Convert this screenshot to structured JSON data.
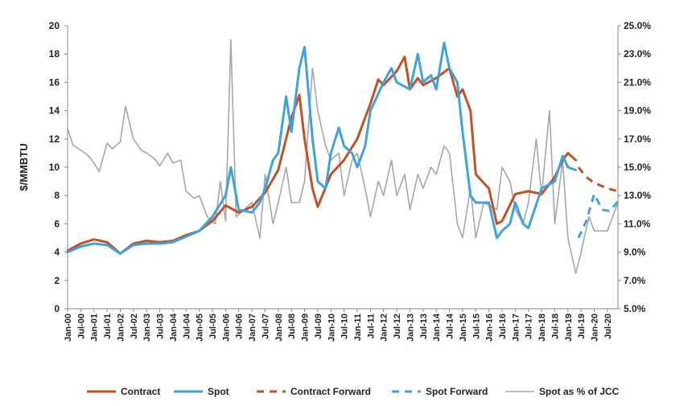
{
  "chart_data": {
    "type": "line",
    "title": "",
    "ylabel": "$/MMBTU",
    "y2label": "",
    "ylim": [
      0,
      20
    ],
    "y2lim": [
      5,
      25
    ],
    "yticks": [
      "0",
      "2",
      "4",
      "6",
      "8",
      "10",
      "12",
      "14",
      "16",
      "18",
      "20"
    ],
    "y2ticks": [
      "5.0%",
      "7.0%",
      "9.0%",
      "11.0%",
      "13.0%",
      "15.0%",
      "17.0%",
      "19.0%",
      "21.0%",
      "23.0%",
      "25.0%"
    ],
    "x_categories": [
      "Jan-00",
      "Jul-00",
      "Jan-01",
      "Jul-01",
      "Jan-02",
      "Jul-02",
      "Jan-03",
      "Jul-03",
      "Jan-04",
      "Jul-04",
      "Jan-05",
      "Jul-05",
      "Jan-06",
      "Jul-06",
      "Jan-07",
      "Jul-07",
      "Jan-08",
      "Jul-08",
      "Jan-09",
      "Jul-09",
      "Jan-10",
      "Jul-10",
      "Jan-11",
      "Jul-11",
      "Jan-12",
      "Jul-12",
      "Jan-13",
      "Jul-13",
      "Jan-14",
      "Jul-14",
      "Jan-15",
      "Jul-15",
      "Jan-16",
      "Jul-16",
      "Jan-17",
      "Jul-17",
      "Jan-18",
      "Jul-18",
      "Jan-19",
      "Jul-19",
      "Jan-20",
      "Jul-20"
    ],
    "x_range": [
      2000.0,
      2020.9
    ],
    "legend_position": "bottom",
    "grid": false,
    "series": [
      {
        "name": "Contract",
        "axis": "left",
        "color": "#c0522a",
        "dash": "solid",
        "points": [
          [
            2000.0,
            4.1
          ],
          [
            2000.5,
            4.6
          ],
          [
            2001.0,
            4.9
          ],
          [
            2001.5,
            4.7
          ],
          [
            2002.0,
            3.9
          ],
          [
            2002.5,
            4.6
          ],
          [
            2003.0,
            4.8
          ],
          [
            2003.5,
            4.7
          ],
          [
            2004.0,
            4.8
          ],
          [
            2004.5,
            5.2
          ],
          [
            2005.0,
            5.5
          ],
          [
            2005.5,
            6.2
          ],
          [
            2006.0,
            7.3
          ],
          [
            2006.5,
            6.8
          ],
          [
            2007.0,
            7.2
          ],
          [
            2007.5,
            8.2
          ],
          [
            2008.0,
            9.8
          ],
          [
            2008.5,
            13.5
          ],
          [
            2008.8,
            15.1
          ],
          [
            2009.0,
            12.0
          ],
          [
            2009.3,
            8.5
          ],
          [
            2009.5,
            7.2
          ],
          [
            2010.0,
            9.5
          ],
          [
            2010.5,
            10.5
          ],
          [
            2011.0,
            12.0
          ],
          [
            2011.5,
            14.5
          ],
          [
            2011.8,
            16.2
          ],
          [
            2012.0,
            15.8
          ],
          [
            2012.5,
            16.8
          ],
          [
            2012.8,
            17.8
          ],
          [
            2013.0,
            15.5
          ],
          [
            2013.3,
            16.3
          ],
          [
            2013.5,
            15.8
          ],
          [
            2014.0,
            16.3
          ],
          [
            2014.5,
            17.0
          ],
          [
            2014.8,
            15.0
          ],
          [
            2015.0,
            15.5
          ],
          [
            2015.3,
            14.0
          ],
          [
            2015.5,
            9.5
          ],
          [
            2016.0,
            8.5
          ],
          [
            2016.3,
            6.0
          ],
          [
            2016.5,
            6.2
          ],
          [
            2017.0,
            8.1
          ],
          [
            2017.5,
            8.3
          ],
          [
            2018.0,
            8.1
          ],
          [
            2018.5,
            9.3
          ],
          [
            2018.8,
            10.5
          ],
          [
            2019.0,
            11.0
          ],
          [
            2019.3,
            10.5
          ]
        ]
      },
      {
        "name": "Spot",
        "axis": "left",
        "color": "#3fa3d9",
        "dash": "solid",
        "points": [
          [
            2000.0,
            4.0
          ],
          [
            2000.5,
            4.4
          ],
          [
            2001.0,
            4.6
          ],
          [
            2001.5,
            4.5
          ],
          [
            2002.0,
            3.9
          ],
          [
            2002.5,
            4.5
          ],
          [
            2003.0,
            4.6
          ],
          [
            2003.5,
            4.6
          ],
          [
            2004.0,
            4.7
          ],
          [
            2004.5,
            5.1
          ],
          [
            2005.0,
            5.5
          ],
          [
            2005.5,
            6.5
          ],
          [
            2006.0,
            8.0
          ],
          [
            2006.2,
            10.0
          ],
          [
            2006.5,
            7.0
          ],
          [
            2007.0,
            6.8
          ],
          [
            2007.3,
            7.5
          ],
          [
            2007.5,
            8.5
          ],
          [
            2007.8,
            10.5
          ],
          [
            2008.0,
            11.0
          ],
          [
            2008.3,
            15.0
          ],
          [
            2008.5,
            12.5
          ],
          [
            2008.8,
            17.0
          ],
          [
            2009.0,
            18.5
          ],
          [
            2009.3,
            12.0
          ],
          [
            2009.5,
            9.0
          ],
          [
            2009.8,
            8.5
          ],
          [
            2010.0,
            11.0
          ],
          [
            2010.3,
            12.8
          ],
          [
            2010.5,
            11.5
          ],
          [
            2010.8,
            11.0
          ],
          [
            2011.0,
            10.0
          ],
          [
            2011.3,
            11.5
          ],
          [
            2011.5,
            14.0
          ],
          [
            2012.0,
            16.0
          ],
          [
            2012.3,
            17.0
          ],
          [
            2012.5,
            16.0
          ],
          [
            2013.0,
            15.5
          ],
          [
            2013.3,
            18.0
          ],
          [
            2013.5,
            16.0
          ],
          [
            2013.8,
            16.5
          ],
          [
            2014.0,
            15.5
          ],
          [
            2014.3,
            18.8
          ],
          [
            2014.5,
            17.0
          ],
          [
            2014.8,
            16.0
          ],
          [
            2015.0,
            12.5
          ],
          [
            2015.3,
            8.0
          ],
          [
            2015.5,
            7.5
          ],
          [
            2016.0,
            7.5
          ],
          [
            2016.3,
            5.0
          ],
          [
            2016.5,
            5.5
          ],
          [
            2016.8,
            6.0
          ],
          [
            2017.0,
            7.5
          ],
          [
            2017.3,
            6.0
          ],
          [
            2017.5,
            5.7
          ],
          [
            2018.0,
            8.5
          ],
          [
            2018.5,
            9.0
          ],
          [
            2018.8,
            10.8
          ],
          [
            2019.0,
            10.0
          ],
          [
            2019.3,
            9.8
          ]
        ]
      },
      {
        "name": "Contract Forward",
        "axis": "left",
        "color": "#c0522a",
        "dash": "dashed",
        "points": [
          [
            2019.4,
            10.0
          ],
          [
            2019.7,
            9.3
          ],
          [
            2020.0,
            8.9
          ],
          [
            2020.5,
            8.5
          ],
          [
            2020.9,
            8.3
          ]
        ]
      },
      {
        "name": "Spot Forward",
        "axis": "left",
        "color": "#3fa3d9",
        "dash": "dashed",
        "points": [
          [
            2019.4,
            5.0
          ],
          [
            2019.7,
            6.2
          ],
          [
            2020.0,
            8.1
          ],
          [
            2020.3,
            7.0
          ],
          [
            2020.6,
            6.9
          ],
          [
            2020.9,
            7.6
          ]
        ]
      },
      {
        "name": "Spot as % of JCC",
        "axis": "right",
        "color": "#a6a6a6",
        "dash": "solid",
        "points": [
          [
            2000.0,
            17.7
          ],
          [
            2000.2,
            16.6
          ],
          [
            2000.5,
            16.2
          ],
          [
            2000.8,
            15.8
          ],
          [
            2001.0,
            15.3
          ],
          [
            2001.2,
            14.7
          ],
          [
            2001.5,
            16.7
          ],
          [
            2001.7,
            16.3
          ],
          [
            2002.0,
            16.8
          ],
          [
            2002.2,
            19.3
          ],
          [
            2002.5,
            17.0
          ],
          [
            2002.8,
            16.2
          ],
          [
            2003.0,
            16.0
          ],
          [
            2003.3,
            15.6
          ],
          [
            2003.5,
            15.1
          ],
          [
            2003.8,
            16.0
          ],
          [
            2004.0,
            15.3
          ],
          [
            2004.3,
            15.5
          ],
          [
            2004.5,
            13.3
          ],
          [
            2004.8,
            12.8
          ],
          [
            2005.0,
            13.0
          ],
          [
            2005.3,
            11.5
          ],
          [
            2005.6,
            11.0
          ],
          [
            2005.8,
            14.0
          ],
          [
            2006.0,
            11.2
          ],
          [
            2006.2,
            24.0
          ],
          [
            2006.4,
            11.5
          ],
          [
            2006.7,
            12.0
          ],
          [
            2007.0,
            12.5
          ],
          [
            2007.3,
            10.0
          ],
          [
            2007.5,
            14.5
          ],
          [
            2007.8,
            11.0
          ],
          [
            2008.0,
            12.5
          ],
          [
            2008.3,
            15.0
          ],
          [
            2008.5,
            12.5
          ],
          [
            2008.8,
            12.5
          ],
          [
            2009.0,
            14.0
          ],
          [
            2009.3,
            22.0
          ],
          [
            2009.5,
            19.0
          ],
          [
            2009.8,
            16.5
          ],
          [
            2010.0,
            15.5
          ],
          [
            2010.3,
            16.0
          ],
          [
            2010.5,
            13.0
          ],
          [
            2010.8,
            15.5
          ],
          [
            2011.0,
            16.0
          ],
          [
            2011.3,
            13.5
          ],
          [
            2011.5,
            11.5
          ],
          [
            2011.8,
            14.0
          ],
          [
            2012.0,
            13.0
          ],
          [
            2012.3,
            15.5
          ],
          [
            2012.5,
            13.0
          ],
          [
            2012.8,
            14.5
          ],
          [
            2013.0,
            12.0
          ],
          [
            2013.3,
            14.5
          ],
          [
            2013.5,
            13.5
          ],
          [
            2013.8,
            15.0
          ],
          [
            2014.0,
            14.5
          ],
          [
            2014.3,
            16.5
          ],
          [
            2014.5,
            16.0
          ],
          [
            2014.8,
            11.0
          ],
          [
            2015.0,
            10.0
          ],
          [
            2015.3,
            13.5
          ],
          [
            2015.5,
            10.0
          ],
          [
            2015.8,
            12.5
          ],
          [
            2016.0,
            12.3
          ],
          [
            2016.3,
            12.0
          ],
          [
            2016.5,
            15.0
          ],
          [
            2016.8,
            14.0
          ],
          [
            2017.0,
            12.0
          ],
          [
            2017.3,
            11.0
          ],
          [
            2017.5,
            12.5
          ],
          [
            2017.8,
            17.0
          ],
          [
            2018.0,
            13.0
          ],
          [
            2018.3,
            19.0
          ],
          [
            2018.5,
            11.0
          ],
          [
            2018.8,
            15.5
          ],
          [
            2019.0,
            10.0
          ],
          [
            2019.3,
            7.5
          ],
          [
            2019.5,
            9.0
          ],
          [
            2019.8,
            11.5
          ],
          [
            2020.0,
            10.5
          ],
          [
            2020.5,
            10.5
          ],
          [
            2020.9,
            12.5
          ]
        ]
      }
    ]
  }
}
